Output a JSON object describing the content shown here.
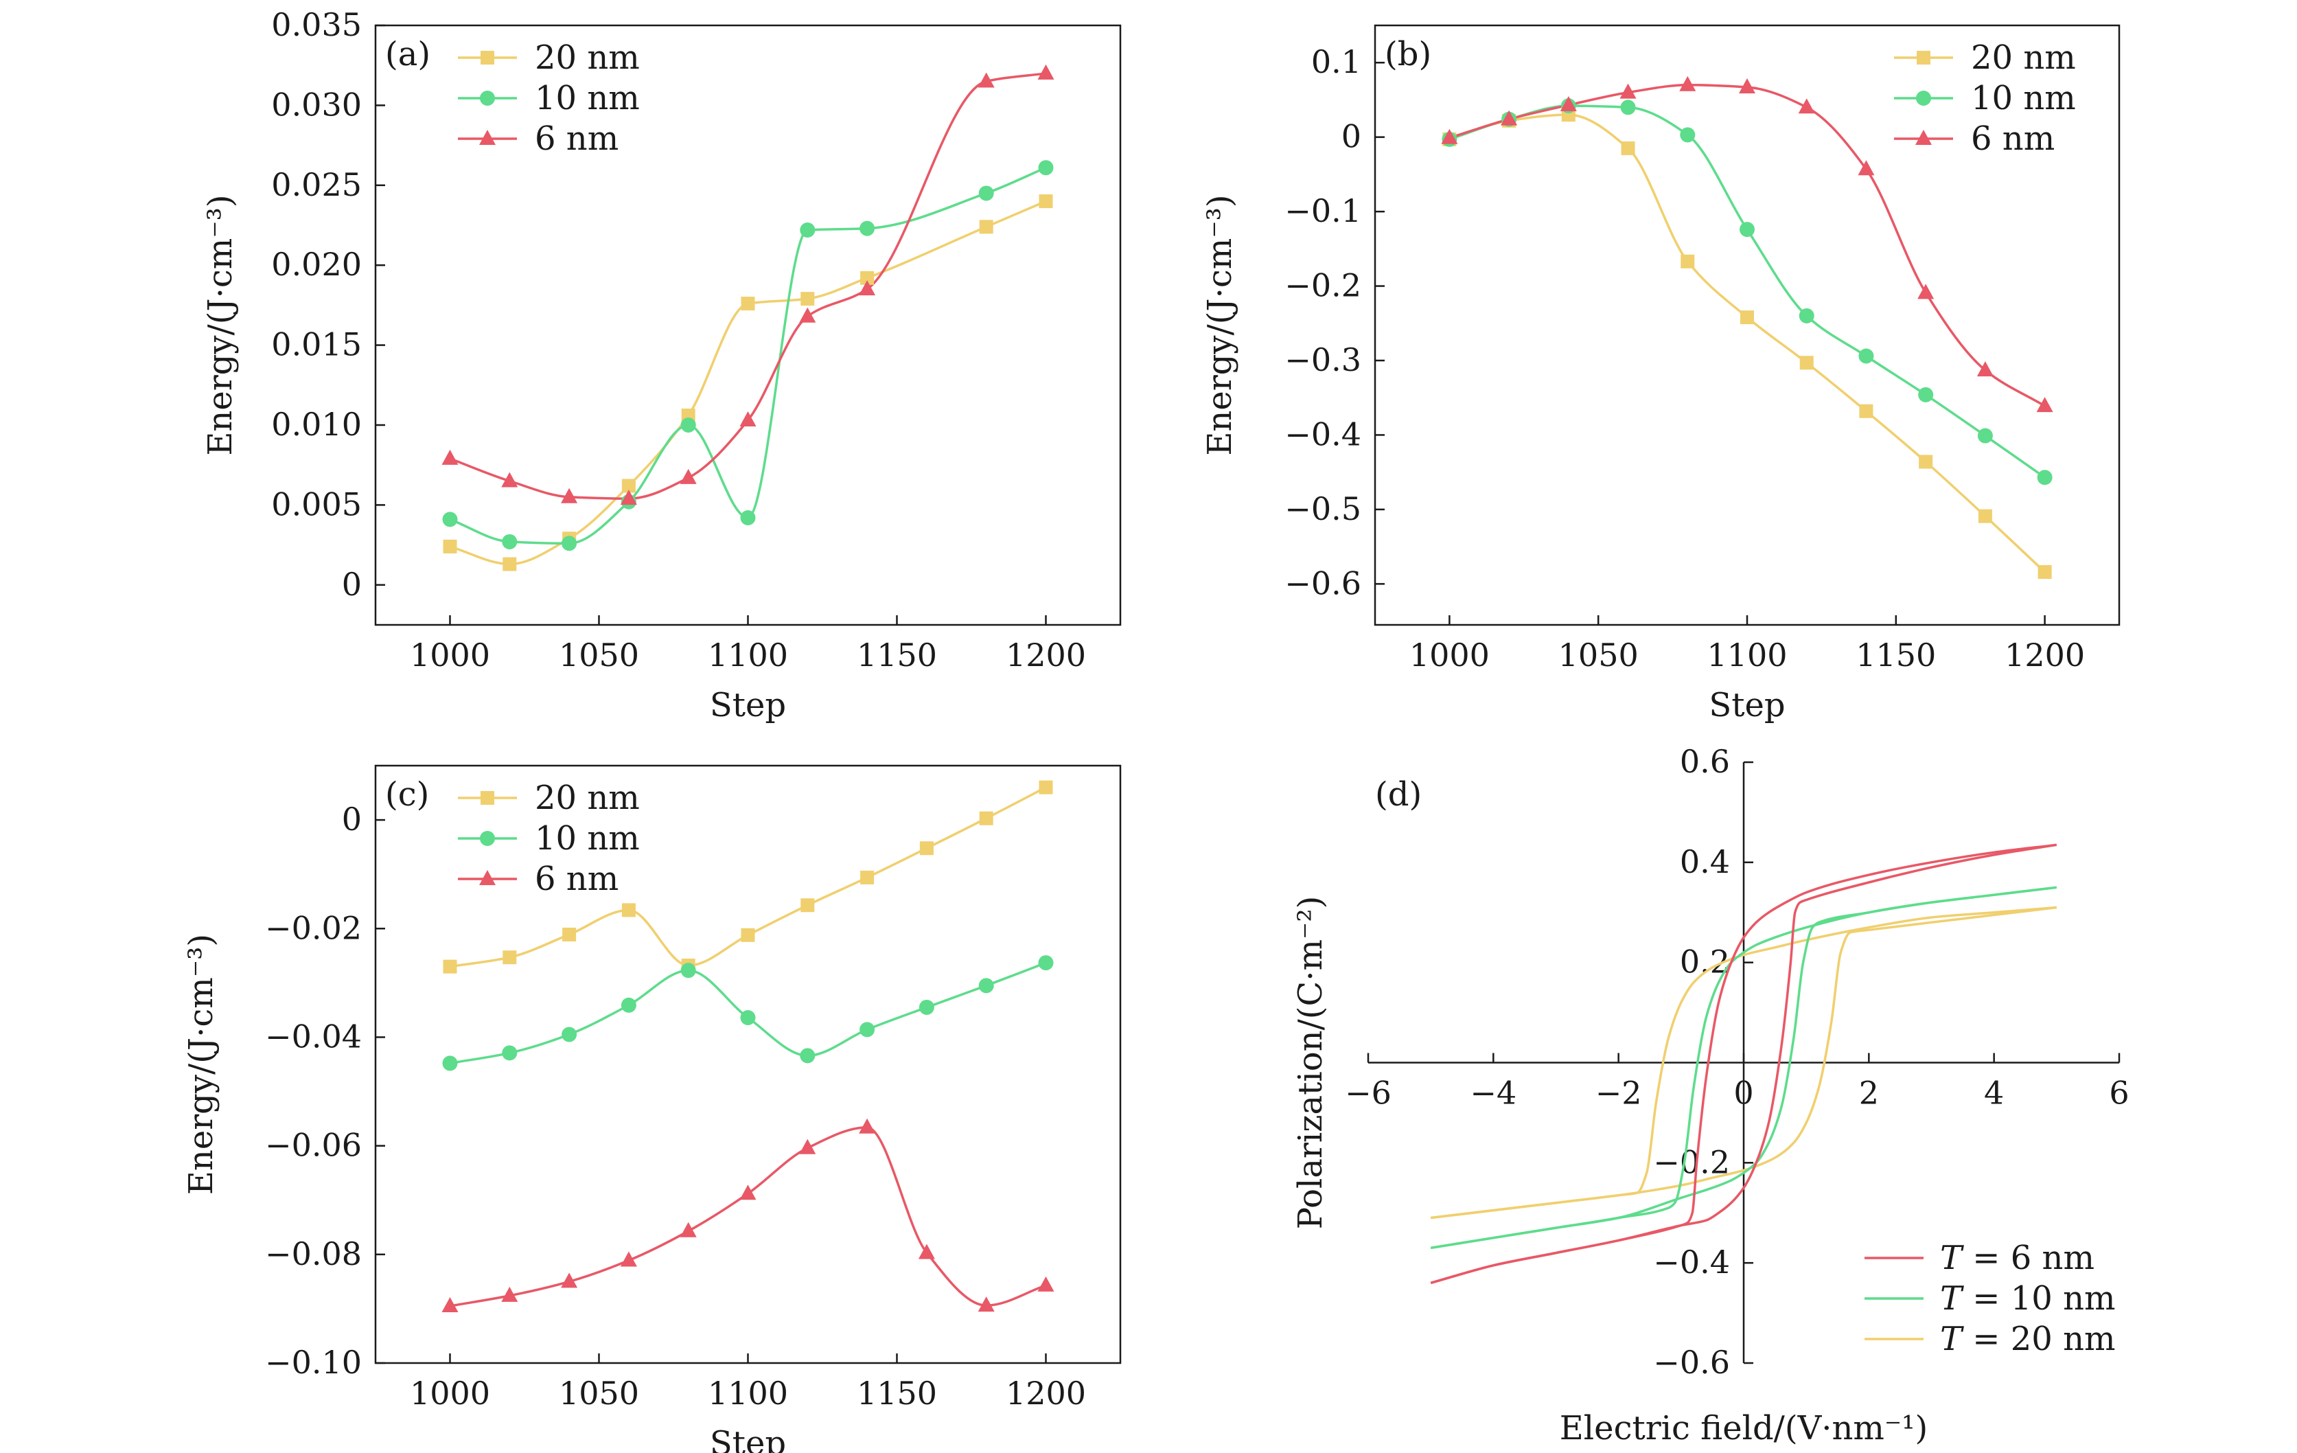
{
  "colors": {
    "20nm": "#f0cf6e",
    "10nm": "#5ddc8c",
    "6nm": "#e85866",
    "axis": "#1a1a1a"
  },
  "chart_data": [
    {
      "id": "a",
      "type": "line",
      "panel_label": "(a)",
      "xlabel": "Step",
      "ylabel": "Energy/(J·cm⁻³)",
      "xlim": [
        975,
        1225
      ],
      "ylim": [
        -0.0025,
        0.035
      ],
      "xticks": [
        1000,
        1050,
        1100,
        1150,
        1200
      ],
      "xtick_labels": [
        "1000",
        "1050",
        "1100",
        "1150",
        "1200"
      ],
      "yticks": [
        0,
        0.005,
        0.01,
        0.015,
        0.02,
        0.025,
        0.03,
        0.035
      ],
      "ytick_labels": [
        "0",
        "0.005",
        "0.010",
        "0.015",
        "0.020",
        "0.025",
        "0.030",
        "0.035"
      ],
      "legend_position": "top-left",
      "series": [
        {
          "name": "20 nm",
          "color_key": "20nm",
          "marker": "square",
          "x": [
            1000,
            1020,
            1040,
            1060,
            1080,
            1100,
            1120,
            1140,
            1180,
            1200
          ],
          "y": [
            0.0024,
            0.0013,
            0.0029,
            0.0062,
            0.0106,
            0.0176,
            0.0179,
            0.0192,
            0.0224,
            0.024
          ]
        },
        {
          "name": "10 nm",
          "color_key": "10nm",
          "marker": "circle",
          "x": [
            1000,
            1020,
            1040,
            1060,
            1080,
            1100,
            1120,
            1140,
            1180,
            1200
          ],
          "y": [
            0.0041,
            0.0027,
            0.0026,
            0.0052,
            0.01,
            0.0042,
            0.0222,
            0.0223,
            0.0245,
            0.0261
          ]
        },
        {
          "name": "6 nm",
          "color_key": "6nm",
          "marker": "triangle",
          "x": [
            1000,
            1020,
            1040,
            1060,
            1080,
            1100,
            1120,
            1140,
            1180,
            1200
          ],
          "y": [
            0.0079,
            0.0065,
            0.0055,
            0.0054,
            0.0067,
            0.0103,
            0.0168,
            0.0185,
            0.0315,
            0.032
          ]
        }
      ]
    },
    {
      "id": "b",
      "type": "line",
      "panel_label": "(b)",
      "xlabel": "Step",
      "ylabel": "Energy/(J·cm⁻³)",
      "xlim": [
        975,
        1225
      ],
      "ylim": [
        -0.655,
        0.15
      ],
      "xticks": [
        1000,
        1050,
        1100,
        1150,
        1200
      ],
      "xtick_labels": [
        "1000",
        "1050",
        "1100",
        "1150",
        "1200"
      ],
      "yticks": [
        -0.6,
        -0.5,
        -0.4,
        -0.3,
        -0.2,
        -0.1,
        0,
        0.1
      ],
      "ytick_labels": [
        "−0.6",
        "−0.5",
        "−0.4",
        "−0.3",
        "−0.2",
        "−0.1",
        "0",
        "0.1"
      ],
      "legend_position": "top-right",
      "series": [
        {
          "name": "20 nm",
          "color_key": "20nm",
          "marker": "square",
          "x": [
            1000,
            1020,
            1040,
            1060,
            1080,
            1100,
            1120,
            1140,
            1160,
            1180,
            1200
          ],
          "y": [
            -0.003,
            0.022,
            0.03,
            -0.015,
            -0.167,
            -0.242,
            -0.303,
            -0.368,
            -0.436,
            -0.509,
            -0.584
          ]
        },
        {
          "name": "10 nm",
          "color_key": "10nm",
          "marker": "circle",
          "x": [
            1000,
            1020,
            1040,
            1060,
            1080,
            1100,
            1120,
            1140,
            1160,
            1180,
            1200
          ],
          "y": [
            -0.003,
            0.024,
            0.042,
            0.04,
            0.003,
            -0.124,
            -0.24,
            -0.294,
            -0.346,
            -0.401,
            -0.457
          ]
        },
        {
          "name": "6 nm",
          "color_key": "6nm",
          "marker": "triangle",
          "x": [
            1000,
            1020,
            1040,
            1060,
            1080,
            1100,
            1120,
            1140,
            1160,
            1180,
            1200
          ],
          "y": [
            -0.001,
            0.024,
            0.043,
            0.06,
            0.07,
            0.067,
            0.04,
            -0.043,
            -0.209,
            -0.313,
            -0.361
          ]
        }
      ]
    },
    {
      "id": "c",
      "type": "line",
      "panel_label": "(c)",
      "xlabel": "Step",
      "ylabel": "Energy/(J·cm⁻³)",
      "xlim": [
        975,
        1225
      ],
      "ylim": [
        -0.1,
        0.01
      ],
      "xticks": [
        1000,
        1050,
        1100,
        1150,
        1200
      ],
      "xtick_labels": [
        "1000",
        "1050",
        "1100",
        "1150",
        "1200"
      ],
      "yticks": [
        -0.1,
        -0.08,
        -0.06,
        -0.04,
        -0.02,
        0
      ],
      "ytick_labels": [
        "−0.10",
        "−0.08",
        "−0.06",
        "−0.04",
        "−0.02",
        "0"
      ],
      "legend_position": "top-left",
      "series": [
        {
          "name": "20 nm",
          "color_key": "20nm",
          "marker": "square",
          "x": [
            1000,
            1020,
            1040,
            1060,
            1080,
            1100,
            1120,
            1140,
            1160,
            1180,
            1200
          ],
          "y": [
            -0.027,
            -0.0253,
            -0.0211,
            -0.0166,
            -0.0268,
            -0.0212,
            -0.0157,
            -0.0106,
            -0.0052,
            0.0003,
            0.006
          ]
        },
        {
          "name": "10 nm",
          "color_key": "10nm",
          "marker": "circle",
          "x": [
            1000,
            1020,
            1040,
            1060,
            1080,
            1100,
            1120,
            1140,
            1160,
            1180,
            1200
          ],
          "y": [
            -0.0448,
            -0.0429,
            -0.0395,
            -0.0341,
            -0.0277,
            -0.0364,
            -0.0434,
            -0.0386,
            -0.0345,
            -0.0305,
            -0.0263
          ]
        },
        {
          "name": "6 nm",
          "color_key": "6nm",
          "marker": "triangle",
          "x": [
            1000,
            1020,
            1040,
            1060,
            1080,
            1100,
            1120,
            1140,
            1160,
            1180,
            1200
          ],
          "y": [
            -0.0895,
            -0.0876,
            -0.085,
            -0.0811,
            -0.0757,
            -0.0688,
            -0.0604,
            -0.0566,
            -0.0797,
            -0.0894,
            -0.0857
          ]
        }
      ]
    },
    {
      "id": "d",
      "type": "line",
      "panel_label": "(d)",
      "xlabel": "Electric field/(V·nm⁻¹)",
      "ylabel": "Polarization/(C·m⁻²)",
      "xlim": [
        -6,
        6
      ],
      "ylim": [
        -0.6,
        0.6
      ],
      "xticks": [
        -6,
        -4,
        -2,
        0,
        2,
        4,
        6
      ],
      "xtick_labels": [
        "−6",
        "−4",
        "−2",
        "0",
        "2",
        "4",
        "6"
      ],
      "yticks": [
        -0.6,
        -0.4,
        -0.2,
        0.2,
        0.4,
        0.6
      ],
      "ytick_labels": [
        "−0.6",
        "−0.4",
        "−0.2",
        "0.2",
        "0.4",
        "0.6"
      ],
      "legend_position": "bottom-right",
      "series": [
        {
          "name": "T = 6 nm",
          "legend_italic": "T",
          "legend_rest": " = 6 nm",
          "color_key": "6nm",
          "loop": true,
          "upper": {
            "x": [
              5,
              4,
              3,
              2,
              1,
              0.6,
              0.4,
              0.2,
              0,
              -0.2,
              -0.4,
              -0.6,
              -0.75,
              -0.82,
              -0.9,
              -1,
              -2,
              -3,
              -4,
              -5
            ],
            "y": [
              0.435,
              0.42,
              0.4,
              0.375,
              0.34,
              0.315,
              0.3,
              0.28,
              0.25,
              0.2,
              0.12,
              -0.03,
              -0.2,
              -0.3,
              -0.32,
              -0.325,
              -0.355,
              -0.38,
              -0.405,
              -0.44
            ]
          },
          "lower": {
            "x": [
              -5,
              -4,
              -3,
              -2,
              -1,
              -0.6,
              -0.4,
              -0.2,
              0,
              0.2,
              0.4,
              0.6,
              0.75,
              0.82,
              0.9,
              1,
              2,
              3,
              4,
              5
            ],
            "y": [
              -0.44,
              -0.405,
              -0.38,
              -0.355,
              -0.325,
              -0.315,
              -0.3,
              -0.28,
              -0.25,
              -0.2,
              -0.12,
              0.03,
              0.2,
              0.3,
              0.32,
              0.325,
              0.36,
              0.39,
              0.415,
              0.435
            ]
          }
        },
        {
          "name": "T = 10 nm",
          "legend_italic": "T",
          "legend_rest": " = 10 nm",
          "color_key": "10nm",
          "loop": true,
          "upper": {
            "x": [
              5,
              4,
              3,
              2,
              1,
              0.5,
              0.2,
              0,
              -0.2,
              -0.4,
              -0.6,
              -0.8,
              -0.95,
              -1.1,
              -1.2,
              -2,
              -3,
              -4,
              -5
            ],
            "y": [
              0.35,
              0.335,
              0.32,
              0.3,
              0.27,
              0.25,
              0.235,
              0.22,
              0.2,
              0.16,
              0.09,
              -0.05,
              -0.2,
              -0.28,
              -0.29,
              -0.31,
              -0.33,
              -0.35,
              -0.37
            ]
          },
          "lower": {
            "x": [
              -5,
              -4,
              -3,
              -2,
              -1,
              -0.5,
              -0.2,
              0,
              0.2,
              0.4,
              0.6,
              0.8,
              0.95,
              1.1,
              1.2,
              2,
              3,
              4,
              5
            ],
            "y": [
              -0.37,
              -0.35,
              -0.33,
              -0.31,
              -0.27,
              -0.25,
              -0.235,
              -0.22,
              -0.2,
              -0.16,
              -0.09,
              0.05,
              0.2,
              0.27,
              0.28,
              0.3,
              0.32,
              0.335,
              0.35
            ]
          }
        },
        {
          "name": "T = 20 nm",
          "legend_italic": "T",
          "legend_rest": " = 20 nm",
          "color_key": "20nm",
          "loop": true,
          "upper": {
            "x": [
              5,
              4,
              3,
              2,
              1,
              0.5,
              0,
              -0.5,
              -0.8,
              -1.0,
              -1.2,
              -1.4,
              -1.55,
              -1.7,
              -2,
              -3,
              -4,
              -5
            ],
            "y": [
              0.31,
              0.3,
              0.29,
              0.27,
              0.245,
              0.23,
              0.215,
              0.19,
              0.16,
              0.12,
              0.05,
              -0.08,
              -0.22,
              -0.26,
              -0.265,
              -0.28,
              -0.295,
              -0.31
            ]
          },
          "lower": {
            "x": [
              -5,
              -4,
              -3,
              -2,
              -1,
              -0.5,
              0,
              0.5,
              0.8,
              1.0,
              1.2,
              1.4,
              1.55,
              1.7,
              2,
              3,
              4,
              5
            ],
            "y": [
              -0.31,
              -0.295,
              -0.28,
              -0.265,
              -0.245,
              -0.23,
              -0.215,
              -0.19,
              -0.16,
              -0.12,
              -0.05,
              0.08,
              0.22,
              0.26,
              0.265,
              0.28,
              0.295,
              0.31
            ]
          }
        }
      ]
    }
  ]
}
